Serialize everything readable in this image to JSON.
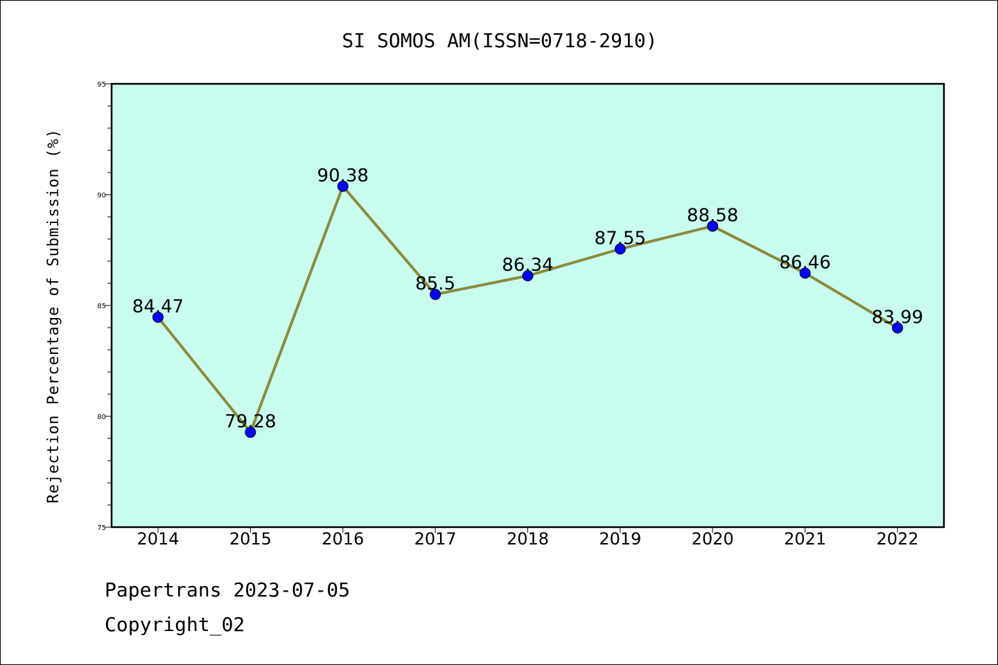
{
  "chart_data": {
    "type": "line",
    "title": "SI SOMOS AM(ISSN=0718-2910)",
    "xlabel": "",
    "ylabel": "Rejection Percentage of Submission (%)",
    "categories": [
      "2014",
      "2015",
      "2016",
      "2017",
      "2018",
      "2019",
      "2020",
      "2021",
      "2022"
    ],
    "series": [
      {
        "values": [
          84.47,
          79.28,
          90.38,
          85.5,
          86.34,
          87.55,
          88.58,
          86.46,
          83.99
        ],
        "data_labels": [
          "84.47",
          "79.28",
          "90.38",
          "85.5",
          "86.34",
          "87.55",
          "88.58",
          "86.46",
          "83.99"
        ]
      }
    ],
    "ylim": [
      75,
      95
    ],
    "yticks": [
      "75",
      "80",
      "85",
      "90",
      "95"
    ],
    "grid": false,
    "colors": {
      "plot_background": "#c8fcee",
      "line": "#8b8a3c",
      "marker": "#0000ff"
    }
  },
  "footer": {
    "line1": "Papertrans 2023-07-05",
    "line2": "Copyright_02"
  }
}
